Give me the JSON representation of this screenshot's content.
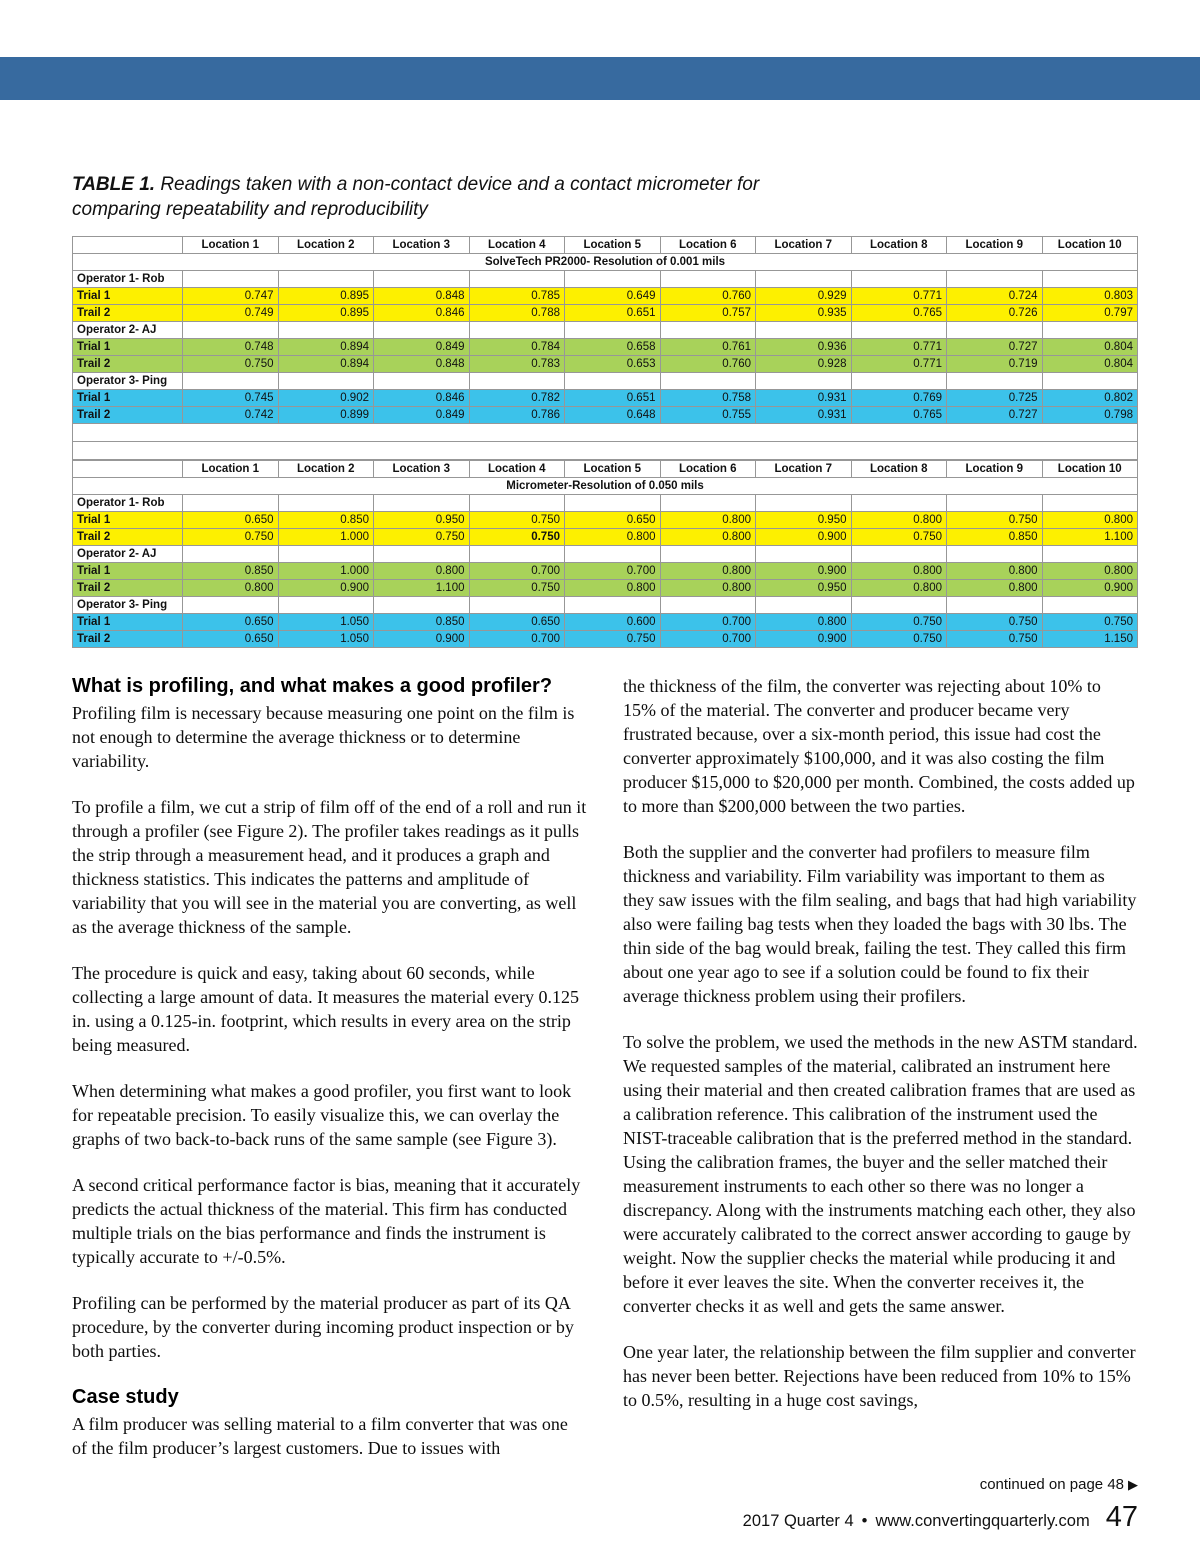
{
  "colors": {
    "top_bar": "#376a9f",
    "row_yellow": "#fdf000",
    "row_green": "#a8d25a",
    "row_blue": "#3cc2ea",
    "gridline": "#979797"
  },
  "page": {
    "caption_label": "TABLE 1.",
    "caption_text": "Readings taken with a non-contact device and a contact micrometer for comparing repeatability and reproducibility"
  },
  "tables": [
    {
      "title": "SolveTech PR2000- Resolution of 0.001 mils",
      "columns": [
        "Location 1",
        "Location 2",
        "Location 3",
        "Location 4",
        "Location 5",
        "Location 6",
        "Location 7",
        "Location 8",
        "Location 9",
        "Location 10"
      ],
      "groups": [
        {
          "operator": "Operator 1- Rob",
          "color": "#fdf000",
          "rows": [
            {
              "label": "Trial 1",
              "values": [
                "0.747",
                "0.895",
                "0.848",
                "0.785",
                "0.649",
                "0.760",
                "0.929",
                "0.771",
                "0.724",
                "0.803"
              ]
            },
            {
              "label": "Trail 2",
              "values": [
                "0.749",
                "0.895",
                "0.846",
                "0.788",
                "0.651",
                "0.757",
                "0.935",
                "0.765",
                "0.726",
                "0.797"
              ]
            }
          ]
        },
        {
          "operator": "Operator 2- AJ",
          "color": "#a8d25a",
          "rows": [
            {
              "label": "Trial 1",
              "values": [
                "0.748",
                "0.894",
                "0.849",
                "0.784",
                "0.658",
                "0.761",
                "0.936",
                "0.771",
                "0.727",
                "0.804"
              ]
            },
            {
              "label": "Trail 2",
              "values": [
                "0.750",
                "0.894",
                "0.848",
                "0.783",
                "0.653",
                "0.760",
                "0.928",
                "0.771",
                "0.719",
                "0.804"
              ]
            }
          ]
        },
        {
          "operator": "Operator 3- Ping",
          "color": "#3cc2ea",
          "rows": [
            {
              "label": "Trial 1",
              "values": [
                "0.745",
                "0.902",
                "0.846",
                "0.782",
                "0.651",
                "0.758",
                "0.931",
                "0.769",
                "0.725",
                "0.802"
              ]
            },
            {
              "label": "Trail 2",
              "values": [
                "0.742",
                "0.899",
                "0.849",
                "0.786",
                "0.648",
                "0.755",
                "0.931",
                "0.765",
                "0.727",
                "0.798"
              ]
            }
          ]
        }
      ]
    },
    {
      "title": "Micrometer-Resolution of 0.050 mils",
      "columns": [
        "Location 1",
        "Location 2",
        "Location 3",
        "Location 4",
        "Location 5",
        "Location 6",
        "Location 7",
        "Location 8",
        "Location 9",
        "Location 10"
      ],
      "groups": [
        {
          "operator": "Operator 1- Rob",
          "color": "#fdf000",
          "rows": [
            {
              "label": "Trial 1",
              "values": [
                "0.650",
                "0.850",
                "0.950",
                "0.750",
                "0.650",
                "0.800",
                "0.950",
                "0.800",
                "0.750",
                "0.800"
              ]
            },
            {
              "label": "Trail 2",
              "values": [
                "0.750",
                "1.000",
                "0.750",
                "0.750",
                "0.800",
                "0.800",
                "0.900",
                "0.750",
                "0.850",
                "1.100"
              ],
              "bold_index": 3
            }
          ]
        },
        {
          "operator": "Operator 2- AJ",
          "color": "#a8d25a",
          "rows": [
            {
              "label": "Trial 1",
              "values": [
                "0.850",
                "1.000",
                "0.800",
                "0.700",
                "0.700",
                "0.800",
                "0.900",
                "0.800",
                "0.800",
                "0.800"
              ]
            },
            {
              "label": "Trail 2",
              "values": [
                "0.800",
                "0.900",
                "1.100",
                "0.750",
                "0.800",
                "0.800",
                "0.950",
                "0.800",
                "0.800",
                "0.900"
              ]
            }
          ]
        },
        {
          "operator": "Operator 3- Ping",
          "color": "#3cc2ea",
          "rows": [
            {
              "label": "Trial 1",
              "values": [
                "0.650",
                "1.050",
                "0.850",
                "0.650",
                "0.600",
                "0.700",
                "0.800",
                "0.750",
                "0.750",
                "0.750"
              ]
            },
            {
              "label": "Trail 2",
              "values": [
                "0.650",
                "1.050",
                "0.900",
                "0.700",
                "0.750",
                "0.700",
                "0.900",
                "0.750",
                "0.750",
                "1.150"
              ]
            }
          ]
        }
      ]
    }
  ],
  "article": {
    "left": {
      "heading1": "What is profiling, and what makes a good profiler?",
      "paragraphs1": [
        "Profiling film is necessary because measuring one point on the film is not enough to determine the average thickness or to determine variability.",
        "To profile a film, we cut a strip of film off of the end of a roll and run it through a profiler (see Figure 2). The profiler takes readings as it pulls the strip through a measurement head, and it produces a graph and thickness statistics. This indicates the patterns and amplitude of variability that you will see in the material you are converting, as well as the average thickness of the sample.",
        "The procedure is quick and easy, taking about 60 seconds, while collecting a large amount of data. It measures the material every 0.125 in. using a 0.125-in. footprint, which results in every area on the strip being measured.",
        "When determining what makes a good profiler, you first want to look for repeatable precision. To easily visualize this, we can overlay the graphs of two back-to-back runs of the same sample (see Figure 3).",
        "A second critical performance factor is bias, meaning that it accurately predicts the actual thickness of the material. This firm has conducted multiple trials on the bias performance and finds the instrument is typically accurate to +/-0.5%.",
        "Profiling can be performed by the material producer as part of its QA procedure, by the converter during incoming product inspection or by both parties."
      ],
      "heading2": "Case study",
      "paragraphs2": [
        "A film producer was selling material to a film converter that was one of the film producer’s largest customers. Due to issues with"
      ]
    },
    "right": {
      "paragraphs": [
        "the thickness of the film, the converter was rejecting about 10% to 15% of the material. The converter and producer became very frustrated because, over a six-month period, this issue had cost the converter approximately $100,000, and it was also costing the film producer $15,000 to $20,000 per month. Combined, the costs added up to more than $200,000 between the two parties.",
        "Both the supplier and the converter had profilers to measure film thickness and variability. Film variability was important to them as they saw issues with the film sealing, and bags that had high variability also were failing bag tests when they loaded the bags with 30 lbs. The thin side of the bag would break, failing the test. They called this firm about one year ago to see if a solution could be found to fix their average thickness problem using their profilers.",
        "To solve the problem, we used the methods in the new ASTM standard. We requested samples of the material, calibrated an instrument here using their material and then created calibration frames that are used as a calibration reference. This calibration of the instrument used the NIST-traceable calibration that is the preferred method in the standard. Using the calibration frames, the buyer and the seller matched their measurement instruments to each other so there was no longer a discrepancy. Along with the instruments matching each other, they also were accurately calibrated to the correct answer according to gauge by weight. Now the supplier checks the material while producing it and before it ever leaves the site. When the converter receives it, the converter checks it as well and gets the same answer.",
        "One year later, the relationship between the film supplier and converter has never been better. Rejections have been reduced from 10% to 15% to 0.5%, resulting in a huge cost savings,"
      ]
    }
  },
  "footer": {
    "continued": "continued on page 48",
    "arrow": "▶",
    "issue": "2017 Quarter 4",
    "bullet": "•",
    "site": "www.convertingquarterly.com",
    "page_number": "47"
  }
}
